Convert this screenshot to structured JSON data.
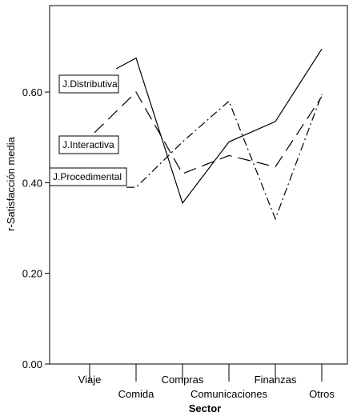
{
  "chart_data": {
    "type": "line",
    "xlabel": "Sector",
    "ylabel": "r-Satisfacción media",
    "categories": [
      "Viaje",
      "Comida",
      "Compras",
      "Comunicaciones",
      "Finanzas",
      "Otros"
    ],
    "ylim": [
      0,
      0.76
    ],
    "yticks": [
      0.0,
      0.2,
      0.4,
      0.6
    ],
    "ytick_labels": [
      "0.00",
      "0.20",
      "0.40",
      "0.60"
    ],
    "grid": false,
    "series": [
      {
        "name": "J.Distributiva",
        "style": "solid",
        "values": [
          0.62,
          0.675,
          0.355,
          0.49,
          0.535,
          0.695
        ]
      },
      {
        "name": "J.Interactiva",
        "style": "dashed",
        "values": [
          0.5,
          0.6,
          0.42,
          0.46,
          0.435,
          0.59
        ]
      },
      {
        "name": "J.Procedimental",
        "style": "dash-dot",
        "values": [
          0.39,
          0.39,
          0.49,
          0.58,
          0.32,
          0.595
        ]
      }
    ]
  }
}
